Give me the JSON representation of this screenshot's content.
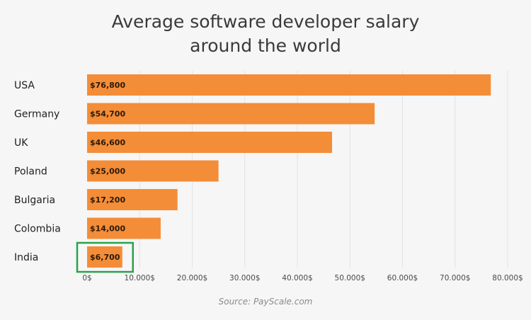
{
  "chart_data": {
    "type": "bar",
    "orientation": "horizontal",
    "title_lines": [
      "Average software developer salary",
      "around the world"
    ],
    "categories": [
      "USA",
      "Germany",
      "UK",
      "Poland",
      "Bulgaria",
      "Colombia",
      "India"
    ],
    "values": [
      76800,
      54700,
      46600,
      25000,
      17200,
      14000,
      6700
    ],
    "data_labels": [
      "$76,800",
      "$54,700",
      "$46,600",
      "$25,000",
      "$17,200",
      "$14,000",
      "$6,700"
    ],
    "xticks": [
      0,
      10000,
      20000,
      30000,
      40000,
      50000,
      60000,
      70000,
      80000
    ],
    "xtick_labels": [
      "0$",
      "10.000$",
      "20.000$",
      "30.000$",
      "40.000$",
      "50.000$",
      "60.000$",
      "70.000$",
      "80.000$"
    ],
    "xlim": [
      0,
      80000
    ],
    "grid": true,
    "highlighted_category": "India",
    "colors": {
      "bar": "#f48d38",
      "highlight_box": "#2aa24a",
      "grid": "#e2e2e2",
      "title": "#3a3a3a"
    }
  },
  "source": "Source: PayScale.com"
}
